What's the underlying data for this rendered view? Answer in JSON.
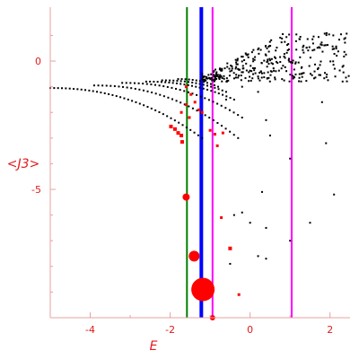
{
  "chart_data": {
    "type": "scatter",
    "xlabel": "E",
    "ylabel": "<J3>",
    "xlim": [
      -5.0,
      2.5
    ],
    "ylim": [
      -10.0,
      2.1
    ],
    "x_ticks": [
      -4,
      -2,
      0,
      2
    ],
    "y_ticks": [
      0,
      -5
    ],
    "colors": {
      "axis": "#e8a0a0",
      "text": "#e41a1c",
      "black_points": "#000000",
      "red_points": "#ff0000",
      "green_line": "#008000",
      "blue_line": "#0000ff",
      "magenta_line": "#ff00ff"
    },
    "vertical_lines": [
      {
        "x": -1.58,
        "color": "#008000",
        "width": 2
      },
      {
        "x": -1.22,
        "color": "#0000ff",
        "width": 4
      },
      {
        "x": -0.94,
        "color": "#ff00ff",
        "width": 2
      },
      {
        "x": 1.04,
        "color": "#ff00ff",
        "width": 2
      }
    ],
    "branches": [
      {
        "x0": -5.0,
        "x1": -1.2,
        "y0": -1.05,
        "y1": -3.0,
        "n": 40
      },
      {
        "x0": -3.9,
        "x1": -0.3,
        "y0": -0.95,
        "y1": -3.0,
        "n": 36
      },
      {
        "x0": -3.2,
        "x1": -0.2,
        "y0": -0.85,
        "y1": -2.2,
        "n": 30
      },
      {
        "x0": -2.6,
        "x1": -0.4,
        "y0": -0.8,
        "y1": -1.5,
        "n": 24
      },
      {
        "x0": -2.2,
        "x1": -0.6,
        "y0": -0.75,
        "y1": -1.2,
        "n": 18
      },
      {
        "x0": -1.8,
        "x1": -0.8,
        "y0": -0.7,
        "y1": -1.0,
        "n": 12
      }
    ],
    "upper_band": {
      "x0": -1.2,
      "x1": 2.5,
      "y_low": -0.6,
      "y_high": 1.1
    },
    "sparse_points": [
      [
        -0.6,
        -1.5
      ],
      [
        -0.2,
        -1.0
      ],
      [
        0.2,
        -1.2
      ],
      [
        0.4,
        -2.3
      ],
      [
        0.5,
        -2.9
      ],
      [
        1.0,
        -3.8
      ],
      [
        1.8,
        -1.6
      ],
      [
        1.9,
        -3.2
      ],
      [
        0.3,
        -5.1
      ],
      [
        2.1,
        -5.2
      ],
      [
        -0.4,
        -6.0
      ],
      [
        -0.2,
        -5.9
      ],
      [
        0.0,
        -6.3
      ],
      [
        0.4,
        -6.5
      ],
      [
        1.5,
        -6.3
      ],
      [
        1.0,
        -7.0
      ],
      [
        0.2,
        -7.6
      ],
      [
        -0.5,
        -7.9
      ],
      [
        0.4,
        -7.7
      ],
      [
        -1.2,
        -0.5
      ],
      [
        -0.9,
        -0.6
      ],
      [
        -0.5,
        -0.4
      ],
      [
        -0.1,
        -0.1
      ]
    ],
    "red_points": [
      {
        "x": -1.72,
        "y": -2.0,
        "r": 1.5
      },
      {
        "x": -1.6,
        "y": -1.7,
        "r": 1.5
      },
      {
        "x": -1.52,
        "y": -2.2,
        "r": 1.5
      },
      {
        "x": -1.98,
        "y": -2.55,
        "r": 2
      },
      {
        "x": -1.88,
        "y": -2.65,
        "r": 2
      },
      {
        "x": -1.8,
        "y": -2.8,
        "r": 2
      },
      {
        "x": -1.72,
        "y": -2.9,
        "r": 2
      },
      {
        "x": -1.7,
        "y": -3.15,
        "r": 2
      },
      {
        "x": -1.6,
        "y": -1.0,
        "r": 1.5
      },
      {
        "x": -1.48,
        "y": -1.3,
        "r": 1.5
      },
      {
        "x": -1.38,
        "y": -1.6,
        "r": 1.5
      },
      {
        "x": -1.28,
        "y": -1.9,
        "r": 1.5
      },
      {
        "x": -1.2,
        "y": -2.0,
        "r": 1.5
      },
      {
        "x": -1.0,
        "y": -2.7,
        "r": 1.5
      },
      {
        "x": -0.88,
        "y": -2.85,
        "r": 1.5
      },
      {
        "x": -0.68,
        "y": -2.8,
        "r": 1.5
      },
      {
        "x": -0.82,
        "y": -3.3,
        "r": 1.5
      },
      {
        "x": -1.6,
        "y": -5.3,
        "r": 4
      },
      {
        "x": -0.72,
        "y": -6.1,
        "r": 1.5
      },
      {
        "x": -0.5,
        "y": -7.3,
        "r": 2
      },
      {
        "x": -1.4,
        "y": -7.6,
        "r": 6
      },
      {
        "x": -1.18,
        "y": -8.9,
        "r": 13
      },
      {
        "x": -0.28,
        "y": -9.1,
        "r": 1.5
      },
      {
        "x": -0.94,
        "y": -10.0,
        "r": 3
      }
    ]
  }
}
